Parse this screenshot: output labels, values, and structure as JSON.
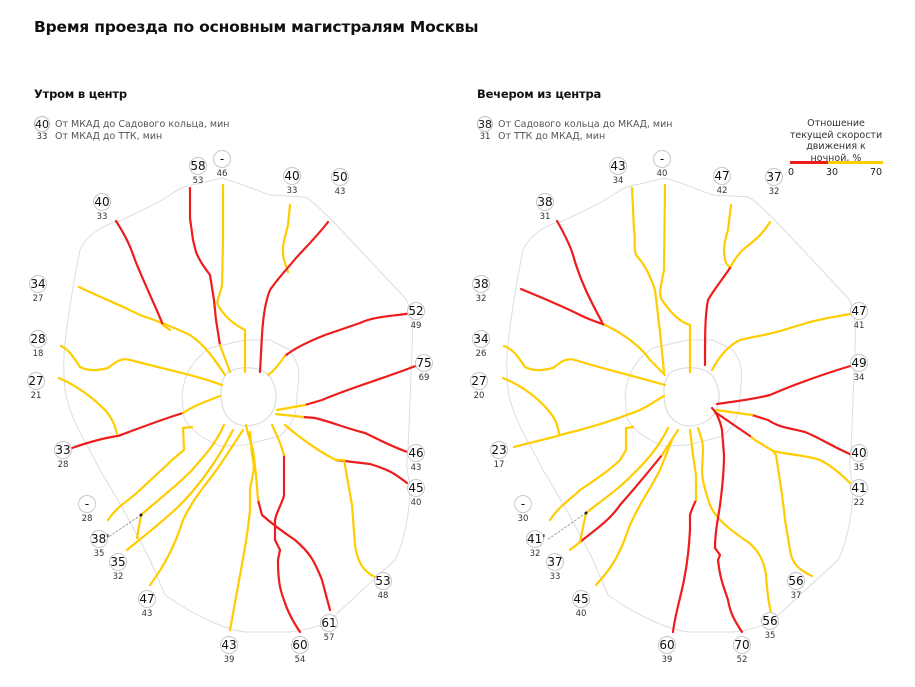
{
  "title": "Время проезда по основным магистралям Москвы",
  "colors": {
    "slow": "#ee1c1c",
    "fast": "#ffcc00",
    "ring": "#dddddd"
  },
  "scale": {
    "label": "Отношение текущей скорости движения к ночной, %",
    "ticks": [
      "0",
      "30",
      "70"
    ]
  },
  "panels": [
    {
      "title": "Утром в центр",
      "legend": {
        "circle_value": "40",
        "circle_text": "От МКАД до Садового кольца, мин",
        "small_value": "33",
        "small_text": "От МКАД до ТТК, мин"
      },
      "routes": [
        {
          "main": "58",
          "sub": "53"
        },
        {
          "main": "-",
          "sub": "46"
        },
        {
          "main": "40",
          "sub": "33"
        },
        {
          "main": "50",
          "sub": "43"
        },
        {
          "main": "52",
          "sub": "49"
        },
        {
          "main": "75",
          "sub": "69"
        },
        {
          "main": "46",
          "sub": "43"
        },
        {
          "main": "45",
          "sub": "40"
        },
        {
          "main": "53",
          "sub": "48"
        },
        {
          "main": "61",
          "sub": "57"
        },
        {
          "main": "60",
          "sub": "54"
        },
        {
          "main": "43",
          "sub": "39"
        },
        {
          "main": "47",
          "sub": "43"
        },
        {
          "main": "35",
          "sub": "32"
        },
        {
          "main": "38'",
          "sub": "35"
        },
        {
          "main": "-",
          "sub": "28"
        },
        {
          "main": "33",
          "sub": "28"
        },
        {
          "main": "27",
          "sub": "21"
        },
        {
          "main": "28",
          "sub": "18"
        },
        {
          "main": "34",
          "sub": "27"
        },
        {
          "main": "40",
          "sub": "33"
        }
      ]
    },
    {
      "title": "Вечером из центра",
      "legend": {
        "circle_value": "38",
        "circle_text": "От Садового кольца до МКАД, мин",
        "small_value": "31",
        "small_text": "От ТТК до МКАД, мин"
      },
      "routes": [
        {
          "main": "43",
          "sub": "34"
        },
        {
          "main": "-",
          "sub": "40"
        },
        {
          "main": "47",
          "sub": "42"
        },
        {
          "main": "37",
          "sub": "32"
        },
        {
          "main": "47",
          "sub": "41"
        },
        {
          "main": "49",
          "sub": "34"
        },
        {
          "main": "40",
          "sub": "35"
        },
        {
          "main": "41",
          "sub": "22"
        },
        {
          "main": "56",
          "sub": "37"
        },
        {
          "main": "56",
          "sub": "35"
        },
        {
          "main": "70",
          "sub": "52"
        },
        {
          "main": "60",
          "sub": "39"
        },
        {
          "main": "45",
          "sub": "40"
        },
        {
          "main": "37",
          "sub": "33"
        },
        {
          "main": "41'",
          "sub": "32"
        },
        {
          "main": "-",
          "sub": "30"
        },
        {
          "main": "23",
          "sub": "17"
        },
        {
          "main": "27",
          "sub": "20"
        },
        {
          "main": "34",
          "sub": "26"
        },
        {
          "main": "38",
          "sub": "32"
        },
        {
          "main": "38",
          "sub": "31"
        }
      ]
    }
  ]
}
